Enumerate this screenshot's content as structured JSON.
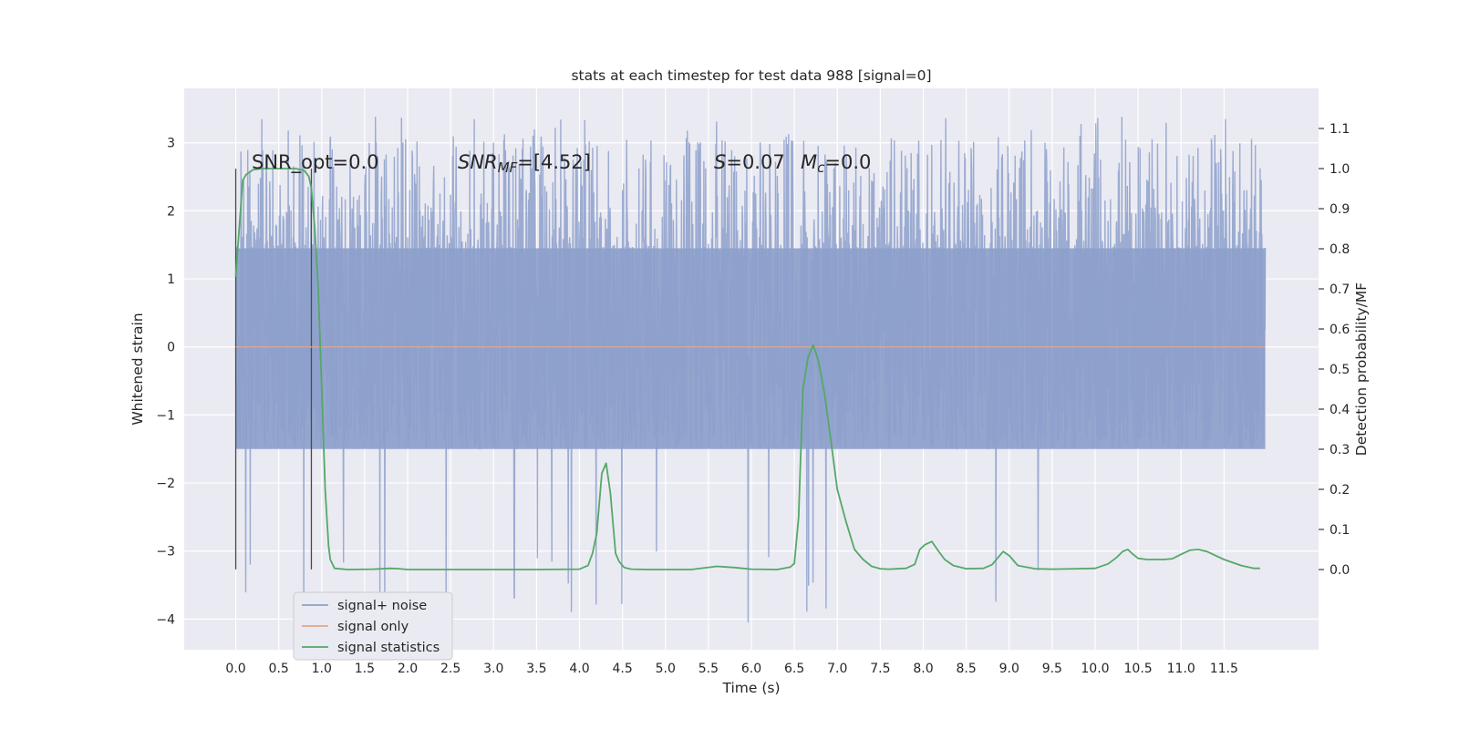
{
  "chart_data": {
    "type": "line",
    "title": "stats at each timestep for test data 988 [signal=0]",
    "xlabel": "Time (s)",
    "ylabel_left": "Whitened strain",
    "ylabel_right": "Detection probability/MF",
    "xlim": [
      -0.6,
      12.6
    ],
    "ylim_left": [
      -4.45,
      3.8
    ],
    "ylim_right": [
      -0.2,
      1.2
    ],
    "x_ticks": [
      0.0,
      0.5,
      1.0,
      1.5,
      2.0,
      2.5,
      3.0,
      3.5,
      4.0,
      4.5,
      5.0,
      5.5,
      6.0,
      6.5,
      7.0,
      7.5,
      8.0,
      8.5,
      9.0,
      9.5,
      10.0,
      10.5,
      11.0,
      11.5
    ],
    "x_tick_labels": [
      "0.0",
      "0.5",
      "1.0",
      "1.5",
      "2.0",
      "2.5",
      "3.0",
      "3.5",
      "4.0",
      "4.5",
      "5.0",
      "5.5",
      "6.0",
      "6.5",
      "7.0",
      "7.5",
      "8.0",
      "8.5",
      "9.0",
      "9.5",
      "10.0",
      "10.5",
      "11.0",
      "11.5"
    ],
    "y_ticks_left": [
      3,
      2,
      1,
      0,
      -1,
      -2,
      -3,
      -4
    ],
    "y_tick_labels_left": [
      "3",
      "2",
      "1",
      "0",
      "−1",
      "−2",
      "−3",
      "−4"
    ],
    "y_ticks_right": [
      1.1,
      1.0,
      0.9,
      0.8,
      0.7,
      0.6,
      0.5,
      0.4,
      0.3,
      0.2,
      0.1,
      0.0
    ],
    "y_tick_labels_right": [
      "1.1",
      "1.0",
      "0.9",
      "0.8",
      "0.7",
      "0.6",
      "0.5",
      "0.4",
      "0.3",
      "0.2",
      "0.1",
      "0.0"
    ],
    "grid": true,
    "legend_position": "lower-left",
    "annotations": {
      "snr_opt": "SNR_opt=0.0",
      "snr_mf_italic": "SNR",
      "snr_mf_sub": "MF",
      "snr_mf_value": "=[4.52]",
      "s_label": "S",
      "s_value": "=0.07",
      "mc_label": "M",
      "mc_sub": "c",
      "mc_value": "=0.0"
    },
    "vertical_markers": [
      0.0,
      0.88
    ],
    "series": [
      {
        "name": "signal+ noise",
        "color": "#8da0cb",
        "axis": "left",
        "x_range": [
          0.0,
          11.98
        ],
        "envelope": {
          "core_upper": 1.45,
          "core_lower": -1.5,
          "spike_max": 3.4,
          "spike_min": -4.1
        }
      },
      {
        "name": "signal only",
        "color": "#e5a687",
        "axis": "left",
        "x": [
          0.0,
          11.98
        ],
        "y": [
          0.0,
          0.0
        ]
      },
      {
        "name": "signal statistics",
        "color": "#55a868",
        "axis": "right",
        "x": [
          0.0,
          0.04,
          0.08,
          0.12,
          0.2,
          0.3,
          0.5,
          0.7,
          0.8,
          0.85,
          0.88,
          0.92,
          0.96,
          1.0,
          1.04,
          1.08,
          1.1,
          1.15,
          1.3,
          1.6,
          1.8,
          1.9,
          2.0,
          2.5,
          3.0,
          3.5,
          4.0,
          4.1,
          4.15,
          4.2,
          4.26,
          4.31,
          4.36,
          4.42,
          4.46,
          4.52,
          4.6,
          4.8,
          5.0,
          5.3,
          5.6,
          5.8,
          6.0,
          6.3,
          6.45,
          6.5,
          6.55,
          6.6,
          6.66,
          6.72,
          6.78,
          6.85,
          6.92,
          7.0,
          7.1,
          7.2,
          7.3,
          7.4,
          7.5,
          7.6,
          7.8,
          7.9,
          7.96,
          8.02,
          8.1,
          8.17,
          8.25,
          8.35,
          8.5,
          8.7,
          8.8,
          8.87,
          8.93,
          9.0,
          9.1,
          9.3,
          9.5,
          9.8,
          10.0,
          10.15,
          10.25,
          10.32,
          10.38,
          10.43,
          10.5,
          10.6,
          10.8,
          10.9,
          11.0,
          11.1,
          11.2,
          11.3,
          11.5,
          11.7,
          11.85,
          11.92
        ],
        "y": [
          0.73,
          0.85,
          0.97,
          0.985,
          0.997,
          1.0,
          1.0,
          1.0,
          0.995,
          0.98,
          0.95,
          0.85,
          0.7,
          0.45,
          0.2,
          0.06,
          0.025,
          0.003,
          0.0,
          0.001,
          0.003,
          0.002,
          0.0,
          0.0,
          0.0,
          0.0,
          0.001,
          0.01,
          0.04,
          0.09,
          0.24,
          0.265,
          0.19,
          0.04,
          0.02,
          0.005,
          0.001,
          0.0,
          0.0,
          0.0,
          0.008,
          0.005,
          0.001,
          0.0,
          0.006,
          0.015,
          0.13,
          0.45,
          0.53,
          0.56,
          0.52,
          0.44,
          0.33,
          0.2,
          0.12,
          0.05,
          0.025,
          0.008,
          0.002,
          0.001,
          0.003,
          0.013,
          0.05,
          0.062,
          0.07,
          0.048,
          0.025,
          0.01,
          0.002,
          0.003,
          0.012,
          0.03,
          0.045,
          0.035,
          0.01,
          0.002,
          0.001,
          0.002,
          0.003,
          0.014,
          0.03,
          0.045,
          0.05,
          0.04,
          0.028,
          0.025,
          0.025,
          0.027,
          0.038,
          0.048,
          0.05,
          0.045,
          0.025,
          0.01,
          0.003,
          0.003
        ]
      }
    ]
  }
}
